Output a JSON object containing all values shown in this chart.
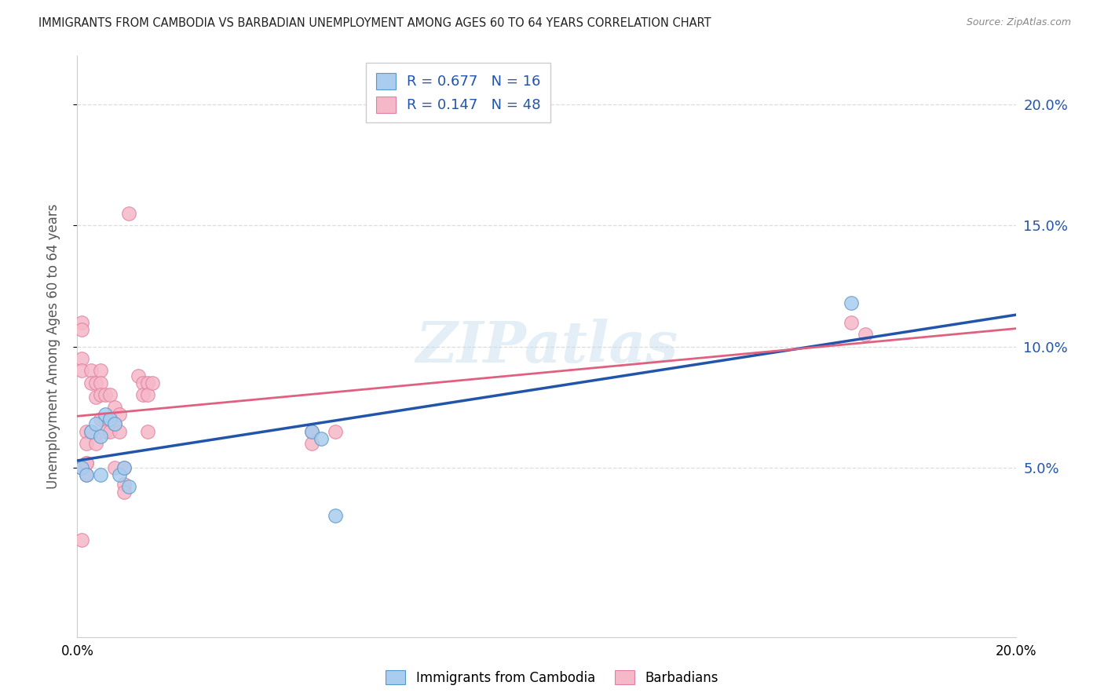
{
  "title": "IMMIGRANTS FROM CAMBODIA VS BARBADIAN UNEMPLOYMENT AMONG AGES 60 TO 64 YEARS CORRELATION CHART",
  "source": "Source: ZipAtlas.com",
  "ylabel": "Unemployment Among Ages 60 to 64 years",
  "xlim": [
    0.0,
    0.2
  ],
  "ylim": [
    -0.02,
    0.22
  ],
  "yticks": [
    0.05,
    0.1,
    0.15,
    0.2
  ],
  "ytick_labels": [
    "5.0%",
    "10.0%",
    "15.0%",
    "20.0%"
  ],
  "blue_R": 0.677,
  "blue_N": 16,
  "pink_R": 0.147,
  "pink_N": 48,
  "blue_fill_color": "#aaccee",
  "pink_fill_color": "#f5b8c8",
  "blue_edge_color": "#5599cc",
  "pink_edge_color": "#e080a0",
  "blue_line_color": "#2255aa",
  "pink_line_color": "#e06080",
  "grid_color": "#dddddd",
  "watermark": "ZIPatlas",
  "blue_points_x": [
    0.001,
    0.002,
    0.003,
    0.004,
    0.005,
    0.005,
    0.006,
    0.007,
    0.008,
    0.009,
    0.01,
    0.011,
    0.05,
    0.052,
    0.055,
    0.165
  ],
  "blue_points_y": [
    0.05,
    0.047,
    0.065,
    0.068,
    0.063,
    0.047,
    0.072,
    0.07,
    0.068,
    0.047,
    0.05,
    0.042,
    0.065,
    0.062,
    0.03,
    0.118
  ],
  "pink_points_x": [
    0.001,
    0.001,
    0.001,
    0.001,
    0.001,
    0.001,
    0.002,
    0.002,
    0.002,
    0.002,
    0.002,
    0.003,
    0.003,
    0.003,
    0.004,
    0.004,
    0.004,
    0.005,
    0.005,
    0.005,
    0.005,
    0.006,
    0.006,
    0.006,
    0.007,
    0.007,
    0.007,
    0.008,
    0.008,
    0.008,
    0.009,
    0.009,
    0.01,
    0.01,
    0.01,
    0.011,
    0.013,
    0.014,
    0.014,
    0.015,
    0.015,
    0.015,
    0.016,
    0.05,
    0.05,
    0.055,
    0.165,
    0.168
  ],
  "pink_points_y": [
    0.11,
    0.107,
    0.095,
    0.09,
    0.05,
    0.02,
    0.065,
    0.06,
    0.052,
    0.052,
    0.047,
    0.09,
    0.085,
    0.065,
    0.085,
    0.079,
    0.06,
    0.09,
    0.085,
    0.08,
    0.07,
    0.08,
    0.07,
    0.065,
    0.08,
    0.07,
    0.065,
    0.075,
    0.068,
    0.05,
    0.072,
    0.065,
    0.05,
    0.043,
    0.04,
    0.155,
    0.088,
    0.085,
    0.08,
    0.085,
    0.08,
    0.065,
    0.085,
    0.065,
    0.06,
    0.065,
    0.11,
    0.105
  ],
  "legend_label_blue": "Immigrants from Cambodia",
  "legend_label_pink": "Barbadians",
  "legend_R_color": "#2255aa",
  "legend_N_color": "#2255aa"
}
